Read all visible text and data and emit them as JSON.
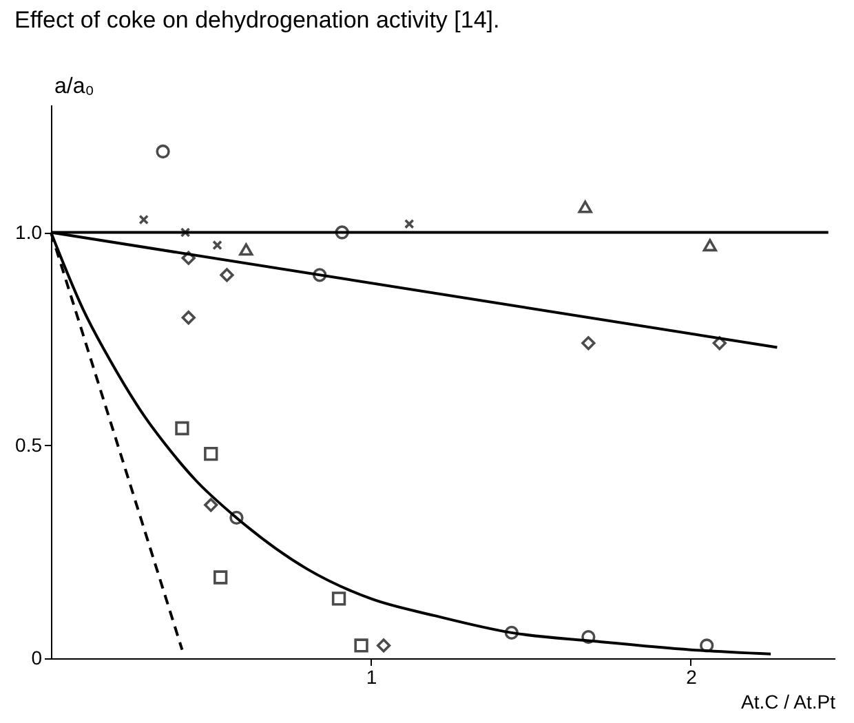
{
  "chart_data": {
    "type": "scatter",
    "title": "Effect of coke on dehydrogenation activity [14].",
    "xlabel": "At.C / At.Pt",
    "ylabel": "a/a₀",
    "xlim": [
      0,
      2.45
    ],
    "ylim": [
      0,
      1.3
    ],
    "xticks": [
      1,
      2
    ],
    "yticks": [
      0,
      0.5,
      {
        "value": 1,
        "label": "1.0"
      }
    ],
    "grid": false,
    "series": [
      {
        "type": "line",
        "color": "#000000",
        "line_style": "solid",
        "x": [
          0,
          2.43
        ],
        "values": [
          1,
          1
        ]
      },
      {
        "type": "line",
        "color": "#000000",
        "line_style": "solid",
        "x": [
          0,
          2.27
        ],
        "values": [
          1,
          0.73
        ]
      },
      {
        "type": "line",
        "color": "#000000",
        "line_style": "dashed",
        "x": [
          0,
          0.41
        ],
        "values": [
          1,
          0.02
        ]
      },
      {
        "type": "line",
        "color": "#000000",
        "line_style": "solid",
        "x": [
          0,
          0.1,
          0.2,
          0.3,
          0.36,
          0.45,
          0.58,
          0.8,
          1.0,
          1.2,
          1.44,
          1.7,
          2.0,
          2.25
        ],
        "values": [
          1,
          0.82,
          0.68,
          0.56,
          0.5,
          0.42,
          0.33,
          0.21,
          0.14,
          0.1,
          0.06,
          0.04,
          0.02,
          0.01
        ]
      },
      {
        "color": "#000000",
        "marker": "circle",
        "x": [
          0.35,
          0.91,
          0.84
        ],
        "values": [
          1.19,
          1.0,
          0.9
        ]
      },
      {
        "color": "#000000",
        "marker": "cross",
        "x": [
          0.29,
          0.42,
          0.52,
          1.12
        ],
        "values": [
          1.03,
          1.0,
          0.97,
          1.02
        ]
      },
      {
        "color": "#000000",
        "marker": "triangle",
        "x": [
          0.61,
          1.67,
          2.06
        ],
        "values": [
          0.96,
          1.06,
          0.97
        ]
      },
      {
        "color": "#000000",
        "marker": "diamond",
        "x": [
          0.43,
          0.55,
          1.68,
          2.09
        ],
        "values": [
          0.94,
          0.9,
          0.74,
          0.74
        ]
      },
      {
        "color": "#000000",
        "marker": "diamond",
        "x": [
          0.43,
          0.5,
          1.04
        ],
        "values": [
          0.8,
          0.36,
          0.03
        ]
      },
      {
        "color": "#000000",
        "marker": "square",
        "x": [
          0.41,
          0.5,
          0.53,
          0.9,
          0.97
        ],
        "values": [
          0.54,
          0.48,
          0.19,
          0.14,
          0.03
        ]
      },
      {
        "color": "#000000",
        "marker": "circle",
        "x": [
          0.58,
          1.44,
          1.68,
          2.05
        ],
        "values": [
          0.33,
          0.06,
          0.05,
          0.03
        ]
      }
    ]
  }
}
